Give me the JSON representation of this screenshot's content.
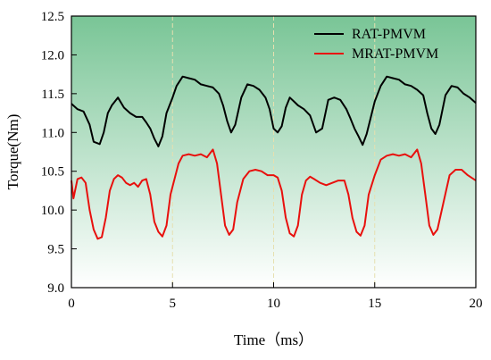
{
  "chart_data": {
    "type": "line",
    "title": "",
    "xlabel": "Time（ms）",
    "ylabel": "Torque(Nm)",
    "xlim": [
      0,
      20
    ],
    "ylim": [
      9.0,
      12.5
    ],
    "xticks": [
      "0",
      "5",
      "10",
      "15",
      "20"
    ],
    "yticks": [
      "9.0",
      "9.5",
      "10.0",
      "10.5",
      "11.0",
      "11.5",
      "12.0",
      "12.5"
    ],
    "grid": "vertical dashed",
    "legend_position": "top-right",
    "background": "vertical gradient, green (top) to white (bottom)",
    "colors": {
      "gradient_top": "#79c596",
      "gradient_bottom": "#ffffff",
      "grid": "#e6e0b0",
      "series_1": "#000000",
      "series_2": "#e8100d"
    },
    "series": [
      {
        "name": "RAT-PMVM",
        "x": [
          0,
          0.3,
          0.6,
          0.9,
          1.1,
          1.4,
          1.6,
          1.8,
          2.0,
          2.3,
          2.6,
          2.9,
          3.2,
          3.5,
          3.7,
          3.9,
          4.1,
          4.3,
          4.5,
          4.7,
          5.0,
          5.2,
          5.5,
          5.8,
          6.1,
          6.4,
          6.7,
          7.0,
          7.3,
          7.5,
          7.7,
          7.9,
          8.1,
          8.4,
          8.7,
          9.0,
          9.3,
          9.6,
          9.8,
          10.0,
          10.2,
          10.4,
          10.6,
          10.8,
          11.0,
          11.2,
          11.5,
          11.8,
          12.1,
          12.4,
          12.7,
          13.0,
          13.3,
          13.6,
          13.8,
          14.0,
          14.2,
          14.4,
          14.6,
          15.0,
          15.3,
          15.6,
          15.9,
          16.2,
          16.5,
          16.8,
          17.1,
          17.4,
          17.6,
          17.8,
          18.0,
          18.2,
          18.5,
          18.8,
          19.1,
          19.4,
          19.7,
          20.0
        ],
        "values": [
          11.37,
          11.3,
          11.27,
          11.1,
          10.88,
          10.85,
          11.0,
          11.25,
          11.35,
          11.45,
          11.32,
          11.25,
          11.2,
          11.2,
          11.13,
          11.05,
          10.92,
          10.82,
          10.95,
          11.25,
          11.45,
          11.6,
          11.72,
          11.7,
          11.68,
          11.62,
          11.6,
          11.58,
          11.5,
          11.35,
          11.15,
          11.0,
          11.1,
          11.45,
          11.62,
          11.6,
          11.55,
          11.45,
          11.3,
          11.05,
          11.0,
          11.08,
          11.32,
          11.45,
          11.4,
          11.35,
          11.3,
          11.22,
          11.0,
          11.05,
          11.42,
          11.45,
          11.42,
          11.3,
          11.18,
          11.05,
          10.95,
          10.84,
          10.98,
          11.4,
          11.6,
          11.72,
          11.7,
          11.68,
          11.62,
          11.6,
          11.55,
          11.48,
          11.25,
          11.05,
          10.98,
          11.1,
          11.48,
          11.6,
          11.58,
          11.5,
          11.45,
          11.38
        ]
      },
      {
        "name": "MRAT-PMVM",
        "x": [
          0,
          0.1,
          0.3,
          0.5,
          0.7,
          0.9,
          1.1,
          1.3,
          1.5,
          1.7,
          1.9,
          2.1,
          2.3,
          2.5,
          2.7,
          2.9,
          3.1,
          3.3,
          3.5,
          3.7,
          3.9,
          4.1,
          4.3,
          4.5,
          4.7,
          4.9,
          5.1,
          5.3,
          5.5,
          5.8,
          6.1,
          6.4,
          6.7,
          7.0,
          7.2,
          7.4,
          7.6,
          7.8,
          8.0,
          8.2,
          8.5,
          8.8,
          9.1,
          9.4,
          9.7,
          10.0,
          10.2,
          10.4,
          10.6,
          10.8,
          11.0,
          11.2,
          11.4,
          11.6,
          11.8,
          12.0,
          12.3,
          12.6,
          12.9,
          13.2,
          13.5,
          13.7,
          13.9,
          14.1,
          14.3,
          14.5,
          14.7,
          15.0,
          15.3,
          15.6,
          15.9,
          16.2,
          16.5,
          16.8,
          17.1,
          17.3,
          17.5,
          17.7,
          17.9,
          18.1,
          18.4,
          18.7,
          19.0,
          19.3,
          19.6,
          20.0
        ],
        "values": [
          10.38,
          10.15,
          10.4,
          10.42,
          10.35,
          10.0,
          9.75,
          9.63,
          9.65,
          9.9,
          10.25,
          10.4,
          10.45,
          10.42,
          10.35,
          10.32,
          10.35,
          10.3,
          10.38,
          10.4,
          10.2,
          9.85,
          9.72,
          9.66,
          9.8,
          10.2,
          10.4,
          10.6,
          10.7,
          10.72,
          10.7,
          10.72,
          10.68,
          10.78,
          10.6,
          10.2,
          9.8,
          9.68,
          9.75,
          10.1,
          10.4,
          10.5,
          10.52,
          10.5,
          10.45,
          10.45,
          10.42,
          10.25,
          9.9,
          9.7,
          9.66,
          9.8,
          10.2,
          10.38,
          10.43,
          10.4,
          10.35,
          10.32,
          10.35,
          10.38,
          10.38,
          10.2,
          9.9,
          9.72,
          9.67,
          9.8,
          10.2,
          10.45,
          10.65,
          10.7,
          10.72,
          10.7,
          10.72,
          10.68,
          10.78,
          10.6,
          10.2,
          9.8,
          9.68,
          9.75,
          10.1,
          10.45,
          10.52,
          10.52,
          10.45,
          10.38
        ]
      }
    ]
  }
}
